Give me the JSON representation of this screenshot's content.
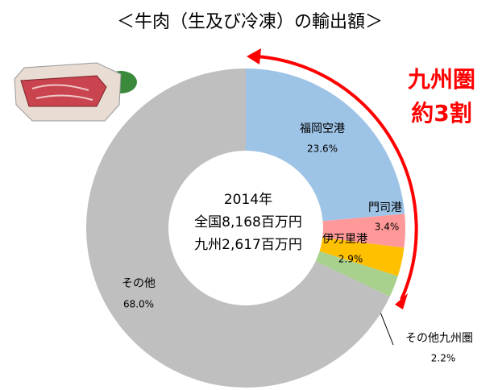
{
  "chart_data": {
    "type": "donut",
    "title": "＜牛肉（生及び冷凍）の輸出額＞",
    "center_text": [
      "2014年",
      "全国8,168百万円",
      "九州2,617百万円"
    ],
    "callout": [
      "九州圏",
      "約3割"
    ],
    "categories": [
      "福岡空港",
      "門司港",
      "伊万里港",
      "その他九州圏",
      "その他"
    ],
    "values": [
      23.6,
      3.4,
      2.9,
      2.2,
      68.0
    ],
    "value_labels": [
      "23.6%",
      "3.4%",
      "2.9%",
      "2.2%",
      "68.0%"
    ],
    "colors": [
      "#9dc3e6",
      "#ff9999",
      "#ffc000",
      "#a9d18e",
      "#bfbfbf"
    ]
  }
}
